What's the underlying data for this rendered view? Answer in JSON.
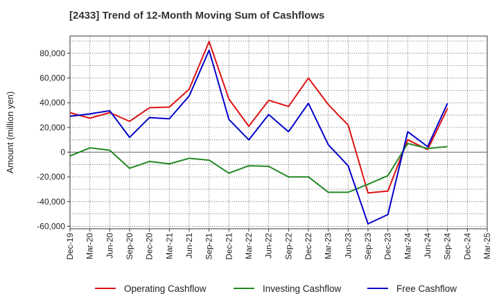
{
  "title": "[2433]  Trend of 12-Month Moving Sum of Cashflows",
  "chart_data": {
    "type": "line",
    "title": "[2433]  Trend of 12-Month Moving Sum of Cashflows",
    "xlabel": "",
    "ylabel": "Amount (million yen)",
    "ylim": [
      -62000,
      94000
    ],
    "yticks": [
      80000,
      60000,
      40000,
      20000,
      0,
      -20000,
      -40000,
      -60000
    ],
    "ytick_labels": [
      "80,000",
      "60,000",
      "40,000",
      "20,000",
      "0",
      "-20,000",
      "-40,000",
      "-60,000"
    ],
    "categories": [
      "Dec-19",
      "Mar-20",
      "Jun-20",
      "Sep-20",
      "Dec-20",
      "Mar-21",
      "Jun-21",
      "Sep-21",
      "Dec-21",
      "Mar-22",
      "Jun-22",
      "Sep-22",
      "Dec-22",
      "Mar-23",
      "Jun-23",
      "Sep-23",
      "Dec-23",
      "Mar-24",
      "Jun-24",
      "Sep-24",
      "Dec-24",
      "Mar-25"
    ],
    "grid": true,
    "legend_position": "bottom",
    "series": [
      {
        "name": "Operating Cashflow",
        "color": "#dd1111",
        "values": [
          32000,
          27500,
          32000,
          25000,
          36000,
          36500,
          51000,
          89500,
          43000,
          21000,
          42000,
          37000,
          60000,
          38500,
          22000,
          -33000,
          -31500,
          10000,
          2000,
          35500,
          null,
          null
        ]
      },
      {
        "name": "Investing Cashflow",
        "color": "#228822",
        "values": [
          -3000,
          3500,
          1500,
          -13000,
          -7500,
          -9500,
          -5000,
          -6500,
          -17000,
          -11000,
          -11500,
          -20000,
          -20000,
          -32500,
          -32500,
          -26000,
          -19000,
          7000,
          3000,
          4500,
          null,
          null
        ]
      },
      {
        "name": "Free Cashflow",
        "color": "#0000cc",
        "values": [
          29000,
          31000,
          33500,
          12000,
          28000,
          27000,
          45500,
          82500,
          26500,
          10000,
          30500,
          16500,
          39500,
          6000,
          -11000,
          -58000,
          -50500,
          16500,
          4500,
          39500,
          null,
          null
        ]
      }
    ]
  }
}
